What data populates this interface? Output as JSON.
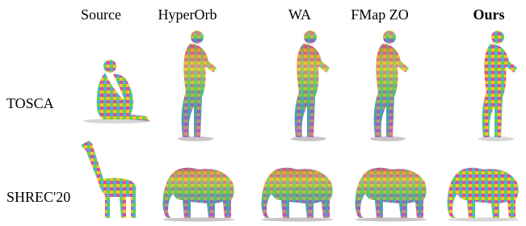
{
  "header": {
    "columns": [
      "Source",
      "HyperOrb",
      "WA",
      "FMap ZO",
      "Ours"
    ]
  },
  "rows": [
    {
      "label": "TOSCA"
    },
    {
      "label": "SHREC'20"
    }
  ]
}
